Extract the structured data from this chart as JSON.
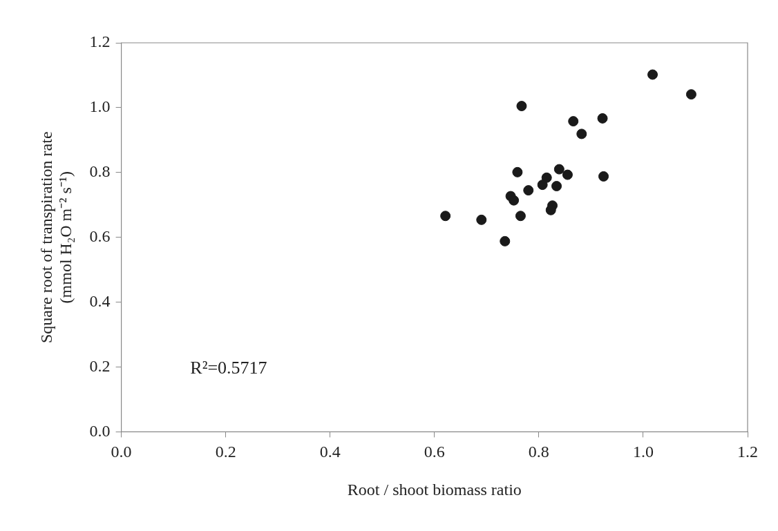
{
  "chart_data": {
    "type": "scatter",
    "xlabel": "Root / shoot biomass ratio",
    "ylabel": "Square root of transpiration rate (mmol H₂O m⁻² s⁻¹)",
    "annotations": [
      "R²=0.5717"
    ],
    "x": [
      1.018,
      1.092,
      0.767,
      0.866,
      0.922,
      0.882,
      0.759,
      0.839,
      0.855,
      0.815,
      0.807,
      0.834,
      0.924,
      0.78,
      0.746,
      0.752,
      0.826,
      0.823,
      0.765,
      0.621,
      0.69,
      0.735
    ],
    "series": [
      {
        "color": "#1a1a1a",
        "values": [
          1.102,
          1.041,
          1.005,
          0.958,
          0.967,
          0.919,
          0.801,
          0.81,
          0.793,
          0.784,
          0.762,
          0.758,
          0.788,
          0.745,
          0.727,
          0.714,
          0.698,
          0.684,
          0.666,
          0.666,
          0.654,
          0.588
        ]
      }
    ],
    "xlim": [
      0,
      1.2
    ],
    "xticks": [
      {
        "value": 0,
        "label": "0.0"
      },
      0.2,
      0.4,
      0.6,
      0.8,
      {
        "value": 1,
        "label": "1.0"
      },
      1.2
    ],
    "ylim": [
      0,
      1.2
    ],
    "yticks": [
      {
        "value": 0,
        "label": "0.0"
      },
      0.2,
      0.4,
      0.6,
      0.8,
      {
        "value": 1,
        "label": "1.0"
      },
      1.2
    ],
    "grid": false,
    "legend": false,
    "marker": "circle"
  }
}
